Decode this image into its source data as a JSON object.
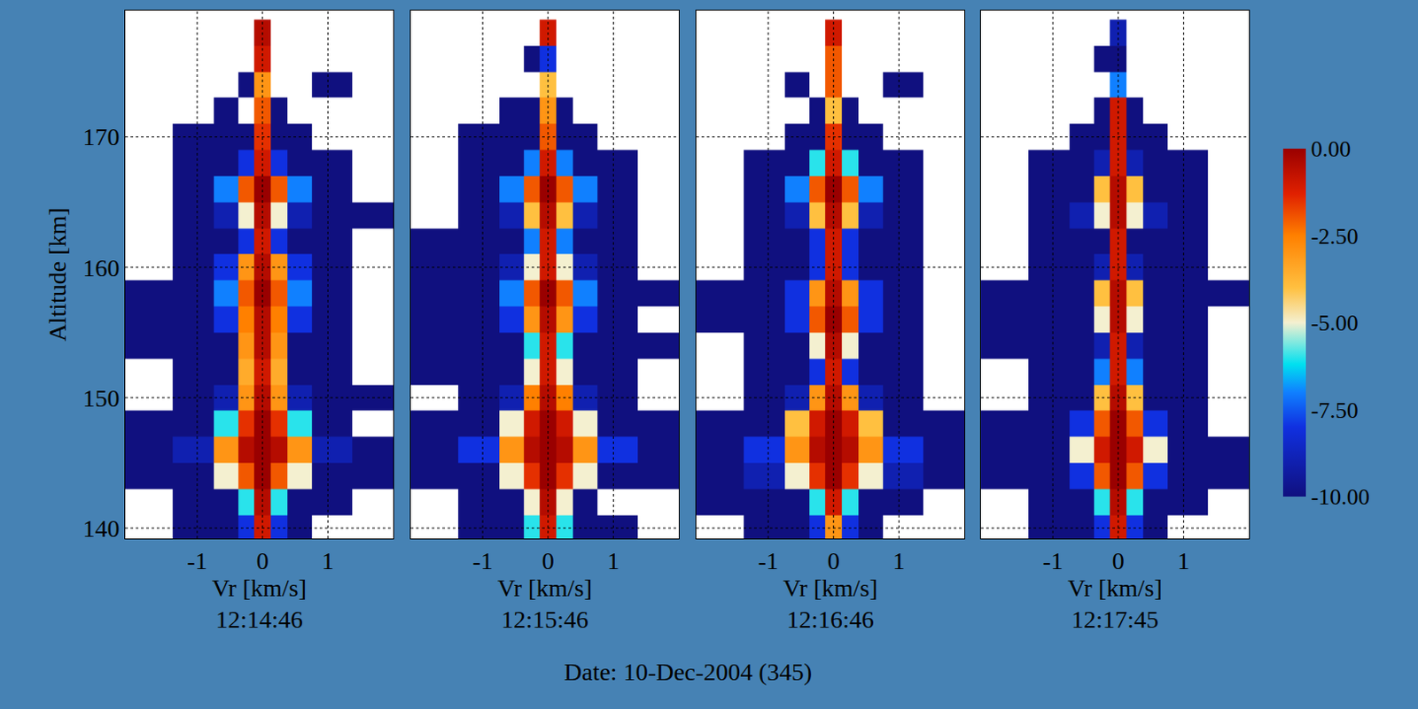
{
  "chart_data": [
    {
      "type": "heatmap",
      "subtitle": "12:14:46",
      "x_label": "Vr [km/s]",
      "y_label": "Altitude [km]",
      "x": [
        -1.75,
        -1,
        -0.5,
        -0.25,
        0,
        0.25,
        0.5,
        1,
        1.75
      ],
      "y": [
        140,
        142,
        144,
        146,
        148,
        150,
        152,
        154,
        156,
        158,
        160,
        162,
        164,
        166,
        168,
        170,
        172,
        174,
        176,
        178
      ],
      "z": [
        [
          null,
          -10,
          -10,
          -8,
          -1,
          -8,
          -10,
          null,
          null
        ],
        [
          null,
          -10,
          -10,
          -6,
          -0.5,
          -6,
          -10,
          -10,
          null
        ],
        [
          -10,
          -10,
          -5,
          -2,
          0,
          -2,
          -5,
          -10,
          -10
        ],
        [
          -10,
          -9,
          -3,
          -0.5,
          0,
          -0.5,
          -3,
          -9,
          -10
        ],
        [
          -10,
          -10,
          -6,
          -1.5,
          0,
          -1.5,
          -6,
          -10,
          null
        ],
        [
          null,
          -10,
          -9,
          -3,
          -0.5,
          -3,
          -9,
          -10,
          -10
        ],
        [
          null,
          -10,
          -10,
          -3.5,
          -1,
          -3.5,
          -10,
          -10,
          null
        ],
        [
          -10,
          -10,
          -10,
          -3,
          -0.5,
          -3,
          -10,
          -10,
          null
        ],
        [
          -10,
          -10,
          -8,
          -2.5,
          -0.5,
          -2.5,
          -8,
          -10,
          null
        ],
        [
          -10,
          -10,
          -7,
          -2,
          0,
          -2,
          -7,
          -10,
          null
        ],
        [
          null,
          -10,
          -8,
          -3,
          -0.5,
          -3,
          -8,
          -10,
          null
        ],
        [
          null,
          -10,
          -10,
          -8,
          -1,
          -8,
          -10,
          -10,
          null
        ],
        [
          null,
          -10,
          -9,
          -5,
          -0.5,
          -5,
          -9,
          -10,
          -10
        ],
        [
          null,
          -10,
          -7,
          -2,
          0,
          -2,
          -7,
          -10,
          null
        ],
        [
          null,
          -10,
          -10,
          -8,
          -1,
          -8,
          -10,
          -10,
          null
        ],
        [
          null,
          -10,
          -10,
          -10,
          -1.5,
          -10,
          -10,
          null,
          null
        ],
        [
          null,
          null,
          -10,
          null,
          -2,
          -10,
          null,
          null,
          null
        ],
        [
          null,
          null,
          null,
          -10,
          -3,
          null,
          null,
          -10,
          null
        ],
        [
          null,
          null,
          null,
          null,
          -1,
          null,
          null,
          null,
          null
        ],
        [
          null,
          null,
          null,
          null,
          -0.5,
          null,
          null,
          null,
          null
        ]
      ],
      "xlim": [
        -2.1,
        2.0
      ],
      "ylim": [
        139.2,
        179.7
      ],
      "xticks": [
        -1,
        0,
        1
      ],
      "yticks": [
        140,
        150,
        160,
        170
      ],
      "grid": true,
      "colorbar": {
        "range": [
          -10,
          0
        ],
        "ticks": [
          {
            "value": 0,
            "label": "0.00"
          },
          {
            "value": -2.5,
            "label": "-2.50"
          },
          {
            "value": -5,
            "label": "-5.00"
          },
          {
            "value": -7.5,
            "label": "-7.50"
          },
          {
            "value": -10,
            "label": "-10.00"
          }
        ]
      }
    },
    {
      "type": "heatmap",
      "subtitle": "12:15:46",
      "x_label": "Vr [km/s]",
      "x": [
        -1.75,
        -1,
        -0.5,
        -0.25,
        0,
        0.25,
        0.5,
        1,
        1.75
      ],
      "y": [
        140,
        142,
        144,
        146,
        148,
        150,
        152,
        154,
        156,
        158,
        160,
        162,
        164,
        166,
        168,
        170,
        172,
        174,
        176,
        178
      ],
      "z": [
        [
          null,
          -10,
          -10,
          -6,
          -1,
          -6,
          -10,
          -10,
          null
        ],
        [
          null,
          -10,
          -10,
          -5,
          -0.5,
          -5,
          -10,
          null,
          null
        ],
        [
          -10,
          -10,
          -5,
          -1.5,
          0,
          -1.5,
          -5,
          -10,
          -10
        ],
        [
          -10,
          -8,
          -3,
          -0.5,
          0,
          -0.5,
          -3,
          -8,
          -10
        ],
        [
          -10,
          -10,
          -5,
          -1,
          0,
          -1,
          -5,
          -10,
          -10
        ],
        [
          null,
          -10,
          -9,
          -2.5,
          -0.5,
          -2.5,
          -9,
          -10,
          null
        ],
        [
          -10,
          -10,
          -10,
          -5,
          -1,
          -5,
          -10,
          -10,
          null
        ],
        [
          -10,
          -10,
          -10,
          -6,
          -1,
          -6,
          -10,
          -10,
          -10
        ],
        [
          -10,
          -10,
          -8,
          -3,
          -0.5,
          -3,
          -8,
          -10,
          null
        ],
        [
          -10,
          -10,
          -7,
          -2,
          0,
          -2,
          -7,
          -10,
          -10
        ],
        [
          -10,
          -10,
          -9,
          -5,
          -1,
          -5,
          -9,
          -10,
          null
        ],
        [
          -10,
          -10,
          -10,
          -7,
          -1,
          -7,
          -10,
          -10,
          null
        ],
        [
          null,
          -10,
          -9,
          -4,
          -0.5,
          -4,
          -9,
          -10,
          null
        ],
        [
          null,
          -10,
          -7,
          -2,
          0,
          -2,
          -7,
          -10,
          null
        ],
        [
          null,
          -10,
          -10,
          -7,
          -1,
          -7,
          -10,
          -10,
          null
        ],
        [
          null,
          -10,
          -10,
          -10,
          -2,
          -10,
          -10,
          null,
          null
        ],
        [
          null,
          null,
          -10,
          -10,
          -3,
          -10,
          null,
          null,
          null
        ],
        [
          null,
          null,
          null,
          null,
          -4,
          null,
          null,
          null,
          null
        ],
        [
          null,
          null,
          null,
          -10,
          -8,
          null,
          null,
          null,
          null
        ],
        [
          null,
          null,
          null,
          null,
          -1,
          null,
          null,
          null,
          null
        ]
      ],
      "xlim": [
        -2.1,
        2.0
      ],
      "ylim": [
        139.2,
        179.7
      ],
      "xticks": [
        -1,
        0,
        1
      ],
      "yticks": [
        140,
        150,
        160,
        170
      ],
      "grid": true,
      "tick_labels": "x"
    },
    {
      "type": "heatmap",
      "subtitle": "12:16:46",
      "x_label": "Vr [km/s]",
      "x": [
        -1.75,
        -1,
        -0.5,
        -0.25,
        0,
        0.25,
        0.5,
        1,
        1.75
      ],
      "y": [
        140,
        142,
        144,
        146,
        148,
        150,
        152,
        154,
        156,
        158,
        160,
        162,
        164,
        166,
        168,
        170,
        172,
        174,
        176,
        178
      ],
      "z": [
        [
          null,
          -10,
          -10,
          -8,
          -3,
          -8,
          -10,
          null,
          null
        ],
        [
          -10,
          -10,
          -10,
          -6,
          -1,
          -6,
          -10,
          -10,
          null
        ],
        [
          -10,
          -9,
          -5,
          -1.5,
          0,
          -1.5,
          -5,
          -9,
          -10
        ],
        [
          -10,
          -8,
          -3,
          -0.5,
          0,
          -0.5,
          -3,
          -8,
          -10
        ],
        [
          -10,
          -10,
          -4,
          -1,
          0,
          -1,
          -4,
          -10,
          -10
        ],
        [
          null,
          -10,
          -9,
          -3,
          -0.5,
          -3,
          -9,
          -10,
          null
        ],
        [
          null,
          -10,
          -10,
          -8,
          -1,
          -8,
          -10,
          -10,
          null
        ],
        [
          null,
          -10,
          -10,
          -5,
          -0.5,
          -5,
          -10,
          -10,
          null
        ],
        [
          -10,
          -10,
          -8,
          -2,
          0,
          -2,
          -8,
          -10,
          null
        ],
        [
          -10,
          -10,
          -8,
          -3,
          -0.5,
          -3,
          -8,
          -10,
          null
        ],
        [
          null,
          -10,
          -10,
          -8,
          -1,
          -8,
          -10,
          -10,
          null
        ],
        [
          null,
          -10,
          -10,
          -8,
          -1,
          -8,
          -10,
          -10,
          null
        ],
        [
          null,
          -10,
          -9,
          -4,
          -0.5,
          -4,
          -9,
          -10,
          null
        ],
        [
          null,
          -10,
          -7,
          -2,
          0,
          -2,
          -7,
          -10,
          null
        ],
        [
          null,
          -10,
          -10,
          -6,
          -1,
          -6,
          -10,
          -10,
          null
        ],
        [
          null,
          null,
          -10,
          -10,
          -1.5,
          -10,
          -10,
          null,
          null
        ],
        [
          null,
          null,
          null,
          -10,
          -4,
          -10,
          null,
          null,
          null
        ],
        [
          null,
          null,
          -10,
          null,
          -2,
          null,
          null,
          -10,
          null
        ],
        [
          null,
          null,
          null,
          null,
          -2,
          null,
          null,
          null,
          null
        ],
        [
          null,
          null,
          null,
          null,
          -1,
          null,
          null,
          null,
          null
        ]
      ],
      "xlim": [
        -2.1,
        2.0
      ],
      "ylim": [
        139.2,
        179.7
      ],
      "xticks": [
        -1,
        0,
        1
      ],
      "yticks": [
        140,
        150,
        160,
        170
      ],
      "grid": true,
      "tick_labels": "x"
    },
    {
      "type": "heatmap",
      "subtitle": "12:17:45",
      "x_label": "Vr [km/s]",
      "x": [
        -1.75,
        -1,
        -0.5,
        -0.25,
        0,
        0.25,
        0.5,
        1,
        1.75
      ],
      "y": [
        140,
        142,
        144,
        146,
        148,
        150,
        152,
        154,
        156,
        158,
        160,
        162,
        164,
        166,
        168,
        170,
        172,
        174,
        176,
        178
      ],
      "z": [
        [
          null,
          -10,
          -10,
          -8,
          -1,
          -8,
          -10,
          null,
          null
        ],
        [
          null,
          -10,
          -10,
          -6,
          -0.5,
          -6,
          -10,
          -10,
          null
        ],
        [
          -10,
          -10,
          -8,
          -2,
          0,
          -2,
          -8,
          -10,
          -10
        ],
        [
          -10,
          -10,
          -5,
          -1,
          0,
          -1,
          -5,
          -10,
          -10
        ],
        [
          -10,
          -10,
          -8,
          -2,
          0,
          -2,
          -8,
          -10,
          null
        ],
        [
          null,
          -10,
          -10,
          -4,
          -0.5,
          -4,
          -10,
          -10,
          null
        ],
        [
          null,
          -10,
          -10,
          -7,
          -1,
          -7,
          -10,
          -10,
          null
        ],
        [
          -10,
          -10,
          -10,
          -9,
          -1,
          -9,
          -10,
          -10,
          null
        ],
        [
          -10,
          -10,
          -10,
          -5,
          -0.5,
          -5,
          -10,
          -10,
          null
        ],
        [
          -10,
          -10,
          -10,
          -4,
          -0.5,
          -4,
          -10,
          -10,
          -10
        ],
        [
          null,
          -10,
          -10,
          -9,
          -1,
          -9,
          -10,
          -10,
          null
        ],
        [
          null,
          -10,
          -10,
          -10,
          -1,
          -10,
          -10,
          -10,
          null
        ],
        [
          null,
          -10,
          -9,
          -5,
          -0.5,
          -5,
          -9,
          -10,
          null
        ],
        [
          null,
          -10,
          -10,
          -4,
          -0.5,
          -4,
          -10,
          -10,
          null
        ],
        [
          null,
          -10,
          -10,
          -9,
          -1,
          -9,
          -10,
          -10,
          null
        ],
        [
          null,
          null,
          -10,
          -10,
          -1,
          -10,
          -10,
          null,
          null
        ],
        [
          null,
          null,
          null,
          -10,
          -1,
          -10,
          null,
          null,
          null
        ],
        [
          null,
          null,
          null,
          null,
          -7,
          null,
          null,
          null,
          null
        ],
        [
          null,
          null,
          null,
          -10,
          -10,
          null,
          null,
          null,
          null
        ],
        [
          null,
          null,
          null,
          null,
          -9,
          null,
          null,
          null,
          null
        ]
      ],
      "xlim": [
        -2.1,
        2.0
      ],
      "ylim": [
        139.2,
        179.7
      ],
      "xticks": [
        -1,
        0,
        1
      ],
      "yticks": [
        140,
        150,
        160,
        170
      ],
      "grid": true,
      "tick_labels": "x"
    }
  ],
  "footer": "Date: 10-Dec-2004 (345)"
}
